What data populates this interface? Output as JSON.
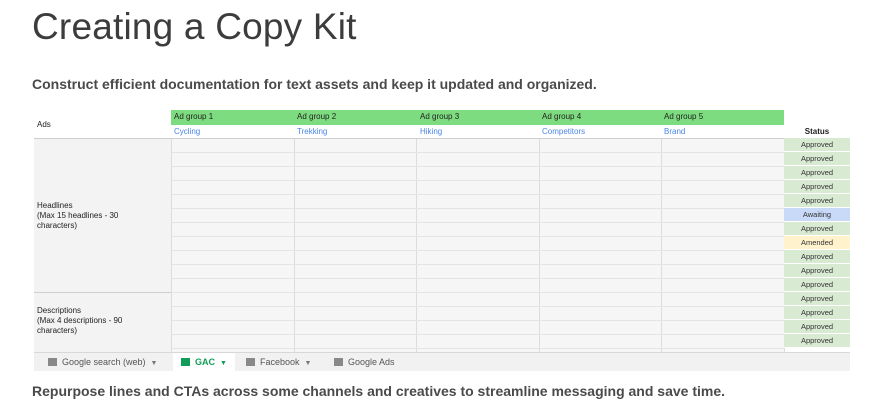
{
  "title": "Creating a Copy Kit",
  "subtitle": "Construct efficient documentation for text assets and keep it updated and organized.",
  "footer": "Repurpose lines and CTAs across some channels and creatives to streamline messaging and save time.",
  "sheet": {
    "ads_label": "Ads",
    "ad_groups": [
      {
        "name": "Ad group 1",
        "theme": "Cycling"
      },
      {
        "name": "Ad group 2",
        "theme": "Trekking"
      },
      {
        "name": "Ad group 3",
        "theme": "Hiking"
      },
      {
        "name": "Ad group 4",
        "theme": "Competitors"
      },
      {
        "name": "Ad group 5",
        "theme": "Brand"
      }
    ],
    "status_header": "Status",
    "headlines_label": [
      "Headlines",
      "(Max 15 headlines - 30",
      "characters)"
    ],
    "descriptions_label": [
      "Descriptions",
      "(Max 4 descriptions - 90",
      "characters)"
    ],
    "statuses": [
      "Approved",
      "Approved",
      "Approved",
      "Approved",
      "Approved",
      "Awaiting",
      "Approved",
      "Amended",
      "Approved",
      "Approved",
      "Approved",
      "Approved",
      "Approved",
      "Approved",
      "Approved"
    ],
    "colors": {
      "header_green": "#7ddc7f",
      "theme_blue": "#4a86e8",
      "approved": "#d9ead3",
      "awaiting": "#c9daf8",
      "amended": "#fff2cc",
      "row_label_bg": "#f3f3f3"
    }
  },
  "tabs": [
    {
      "label": "Google search (web)",
      "icon": "sheet-icon",
      "active": false
    },
    {
      "label": "GAC",
      "icon": "sheet-icon",
      "active": true
    },
    {
      "label": "Facebook",
      "icon": "sheet-icon",
      "active": false
    },
    {
      "label": "Google Ads",
      "icon": "sheet-icon",
      "active": false
    }
  ]
}
